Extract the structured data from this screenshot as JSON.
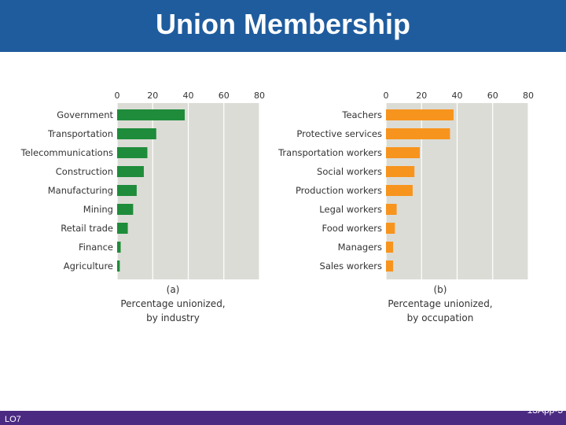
{
  "title": "Union Membership",
  "footer": {
    "left": "LO7",
    "right": "13App-5"
  },
  "chart_data": [
    {
      "type": "bar",
      "orientation": "horizontal",
      "xlim": [
        0,
        80
      ],
      "ticks": [
        "0",
        "20",
        "40",
        "60",
        "80"
      ],
      "grid": true,
      "categories": [
        "Government",
        "Transportation",
        "Telecommunications",
        "Construction",
        "Manufacturing",
        "Mining",
        "Retail trade",
        "Finance",
        "Agriculture"
      ],
      "values": [
        38,
        22,
        17,
        15,
        11,
        9,
        6,
        2,
        1.5
      ],
      "color": "#1e8c3a",
      "caption": [
        "(a)",
        "Percentage unionized,",
        "by industry"
      ]
    },
    {
      "type": "bar",
      "orientation": "horizontal",
      "xlim": [
        0,
        80
      ],
      "ticks": [
        "0",
        "20",
        "40",
        "60",
        "80"
      ],
      "grid": true,
      "categories": [
        "Teachers",
        "Protective services",
        "Transportation workers",
        "Social workers",
        "Production workers",
        "Legal workers",
        "Food workers",
        "Managers",
        "Sales workers"
      ],
      "values": [
        38,
        36,
        19,
        16,
        15,
        6,
        5,
        4,
        4
      ],
      "color": "#f7941d",
      "caption": [
        "(b)",
        "Percentage unionized,",
        "by occupation"
      ]
    }
  ]
}
